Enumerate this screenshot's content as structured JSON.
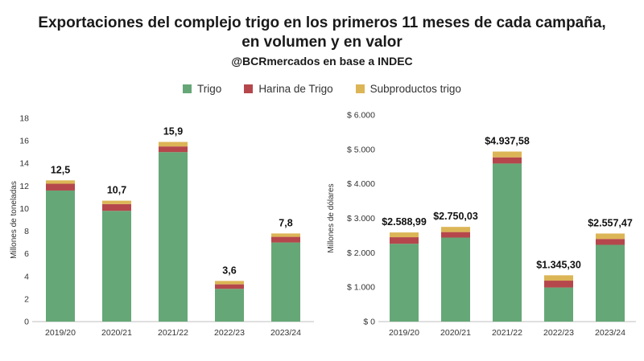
{
  "title": {
    "line1": "Exportaciones del complejo trigo en los primeros 11 meses de cada campaña,",
    "line2": "en volumen y en valor",
    "source": "@BCRmercados en base a INDEC"
  },
  "legend": [
    {
      "name": "Trigo",
      "color": "#66a777"
    },
    {
      "name": "Harina de Trigo",
      "color": "#b5474c"
    },
    {
      "name": "Subproductos trigo",
      "color": "#dcb556"
    }
  ],
  "chart_data": [
    {
      "type": "bar",
      "stacked": true,
      "categories": [
        "2019/20",
        "2020/21",
        "2021/22",
        "2022/23",
        "2023/24"
      ],
      "series": [
        {
          "name": "Trigo",
          "values": [
            11.6,
            9.8,
            15.0,
            2.9,
            7.0
          ]
        },
        {
          "name": "Harina de Trigo",
          "values": [
            0.6,
            0.6,
            0.5,
            0.4,
            0.5
          ]
        },
        {
          "name": "Subproductos trigo",
          "values": [
            0.3,
            0.3,
            0.4,
            0.3,
            0.3
          ]
        }
      ],
      "totals_labels": [
        "12,5",
        "10,7",
        "15,9",
        "3,6",
        "7,8"
      ],
      "totals": [
        12.5,
        10.7,
        15.9,
        3.6,
        7.8
      ],
      "ylabel": "Millones de toneladas",
      "ylim": [
        0,
        18
      ],
      "yticks": [
        0,
        2,
        4,
        6,
        8,
        10,
        12,
        14,
        16,
        18
      ],
      "ytick_labels": [
        "0",
        "2",
        "4",
        "6",
        "8",
        "10",
        "12",
        "14",
        "16",
        "18"
      ],
      "grid": false
    },
    {
      "type": "bar",
      "stacked": true,
      "categories": [
        "2019/20",
        "2020/21",
        "2021/22",
        "2022/23",
        "2023/24"
      ],
      "series": [
        {
          "name": "Trigo",
          "values": [
            2260,
            2440,
            4590,
            990,
            2230
          ]
        },
        {
          "name": "Harina de Trigo",
          "values": [
            190,
            160,
            180,
            200,
            170
          ]
        },
        {
          "name": "Subproductos trigo",
          "values": [
            138.99,
            150.03,
            167.58,
            155.3,
            157.47
          ]
        }
      ],
      "totals_labels": [
        "$2.588,99",
        "$2.750,03",
        "$4.937,58",
        "$1.345,30",
        "$2.557,47"
      ],
      "totals": [
        2588.99,
        2750.03,
        4937.58,
        1345.3,
        2557.47
      ],
      "ylabel": "Millones de dólares",
      "ylim": [
        0,
        6000
      ],
      "yticks": [
        0,
        1000,
        2000,
        3000,
        4000,
        5000,
        6000
      ],
      "ytick_labels": [
        "$ 0",
        "$ 1.000",
        "$ 2.000",
        "$ 3.000",
        "$ 4.000",
        "$ 5.000",
        "$ 6.000"
      ],
      "grid": false
    }
  ]
}
